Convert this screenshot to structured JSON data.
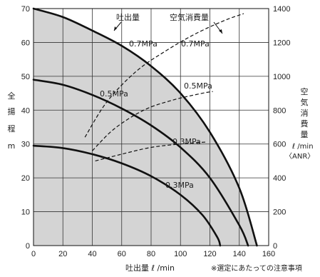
{
  "chart_data": {
    "type": "line",
    "x_axis": {
      "label": "吐出量 ℓ /min",
      "range": [
        0,
        160
      ],
      "ticks": [
        "0",
        "20",
        "40",
        "60",
        "80",
        "100",
        "120",
        "140",
        "160"
      ]
    },
    "y_left": {
      "label_chars": [
        "全",
        "揚",
        "程",
        "m"
      ],
      "range": [
        0,
        70
      ],
      "ticks": [
        "0",
        "10",
        "20",
        "30",
        "40",
        "50",
        "60",
        "70"
      ]
    },
    "y_right": {
      "label_chars": [
        "空",
        "気",
        "消",
        "費",
        "量"
      ],
      "unit": "ℓ /min",
      "unit2": "〈ANR〉",
      "range": [
        0,
        1400
      ],
      "ticks": [
        "0",
        "200",
        "400",
        "600",
        "800",
        "1000",
        "1200",
        "1400"
      ]
    },
    "grid": true,
    "shading_color": "#d4d4d4",
    "legend_discharge": "吐出量",
    "legend_air": "空気消費量",
    "discharge_series": [
      {
        "name": "0.7MPa",
        "points": [
          [
            0,
            70
          ],
          [
            20,
            67.5
          ],
          [
            40,
            63.5
          ],
          [
            60,
            59
          ],
          [
            80,
            53
          ],
          [
            100,
            45
          ],
          [
            120,
            33.5
          ],
          [
            140,
            17
          ],
          [
            152,
            0
          ]
        ]
      },
      {
        "name": "0.5MPa",
        "points": [
          [
            0,
            49
          ],
          [
            20,
            47.5
          ],
          [
            40,
            44.5
          ],
          [
            60,
            40.5
          ],
          [
            80,
            35.5
          ],
          [
            100,
            29
          ],
          [
            120,
            20
          ],
          [
            140,
            6
          ],
          [
            146,
            0
          ]
        ]
      },
      {
        "name": "0.3MPa",
        "points": [
          [
            0,
            29.5
          ],
          [
            20,
            28.8
          ],
          [
            40,
            27
          ],
          [
            60,
            24.3
          ],
          [
            80,
            20.5
          ],
          [
            100,
            15
          ],
          [
            115,
            9
          ],
          [
            125,
            2.5
          ],
          [
            127,
            0
          ]
        ]
      }
    ],
    "air_series": [
      {
        "name": "0.7MPa",
        "points": [
          [
            35,
            640
          ],
          [
            50,
            850
          ],
          [
            70,
            1030
          ],
          [
            90,
            1150
          ],
          [
            110,
            1250
          ],
          [
            130,
            1330
          ],
          [
            143,
            1370
          ]
        ]
      },
      {
        "name": "0.5MPa",
        "points": [
          [
            40,
            560
          ],
          [
            55,
            690
          ],
          [
            75,
            800
          ],
          [
            95,
            860
          ],
          [
            115,
            900
          ],
          [
            122,
            910
          ]
        ]
      },
      {
        "name": "0.3MPa",
        "points": [
          [
            42,
            500
          ],
          [
            60,
            540
          ],
          [
            80,
            580
          ],
          [
            100,
            600
          ],
          [
            118,
            612
          ]
        ]
      }
    ],
    "note": "※選定にあたっての注意事項"
  }
}
